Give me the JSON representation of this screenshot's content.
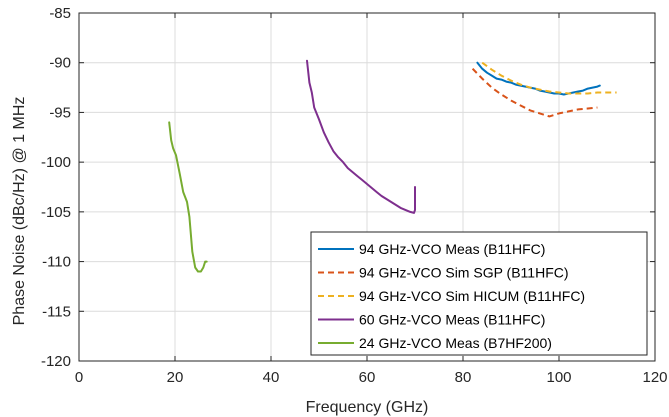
{
  "chart_data": {
    "type": "line",
    "title": "",
    "xlabel": "Frequency (GHz)",
    "ylabel": "Phase Noise (dBc/Hz) @ 1 MHz",
    "xlim": [
      0,
      120
    ],
    "ylim": [
      -120,
      -85
    ],
    "xticks": [
      0,
      20,
      40,
      60,
      80,
      100,
      120
    ],
    "yticks": [
      -120,
      -115,
      -110,
      -105,
      -100,
      -95,
      -90,
      -85
    ],
    "grid": true,
    "legend_position": "bottom-right",
    "series": [
      {
        "name": "94 GHz-VCO Meas (B11HFC)",
        "color": "#0072BD",
        "dash": "solid",
        "x": [
          83.0,
          84.0,
          85.0,
          86.0,
          87.0,
          88.0,
          89.0,
          90.0,
          91.0,
          92.0,
          93.0,
          94.0,
          95.0,
          96.0,
          97.0,
          98.0,
          99.0,
          100.0,
          101.0,
          102.0,
          103.0,
          104.0,
          105.0,
          106.0,
          107.0,
          108.0,
          108.5
        ],
        "y": [
          -90.0,
          -90.6,
          -91.0,
          -91.3,
          -91.6,
          -91.7,
          -91.9,
          -92.0,
          -92.2,
          -92.3,
          -92.4,
          -92.5,
          -92.6,
          -92.8,
          -92.9,
          -93.0,
          -93.1,
          -93.1,
          -93.2,
          -93.1,
          -93.0,
          -92.9,
          -92.8,
          -92.6,
          -92.5,
          -92.4,
          -92.3
        ]
      },
      {
        "name": "94 GHz-VCO Sim SGP (B11HFC)",
        "color": "#D95319",
        "dash": "dashed",
        "x": [
          82.0,
          84.0,
          86.0,
          88.0,
          90.0,
          92.0,
          94.0,
          96.0,
          98.0,
          100.0,
          102.0,
          104.0,
          106.0,
          108.0
        ],
        "y": [
          -90.6,
          -91.6,
          -92.5,
          -93.2,
          -93.8,
          -94.3,
          -94.8,
          -95.1,
          -95.4,
          -95.1,
          -94.9,
          -94.7,
          -94.6,
          -94.5
        ]
      },
      {
        "name": "94 GHz-VCO Sim HICUM (B11HFC)",
        "color": "#EDB120",
        "dash": "dashed",
        "x": [
          84.0,
          86.0,
          88.0,
          90.0,
          92.0,
          94.0,
          96.0,
          98.0,
          100.0,
          102.0,
          104.0,
          106.0,
          108.0,
          110.0,
          112.0
        ],
        "y": [
          -90.0,
          -90.7,
          -91.3,
          -91.8,
          -92.2,
          -92.5,
          -92.7,
          -92.9,
          -93.0,
          -93.1,
          -93.1,
          -93.1,
          -93.0,
          -93.0,
          -93.0
        ]
      },
      {
        "name": "60 GHz-VCO Meas (B11HFC)",
        "color": "#7E2F8E",
        "dash": "solid",
        "x": [
          47.5,
          48.0,
          48.5,
          49.0,
          50.0,
          51.0,
          52.0,
          53.0,
          54.0,
          55.0,
          56.0,
          57.0,
          58.0,
          59.0,
          60.0,
          61.0,
          62.0,
          63.0,
          64.0,
          65.0,
          66.0,
          67.0,
          68.0,
          69.0,
          69.8,
          70.0,
          70.0
        ],
        "y": [
          -89.8,
          -92.0,
          -93.0,
          -94.5,
          -95.7,
          -97.0,
          -98.0,
          -98.9,
          -99.5,
          -100.0,
          -100.6,
          -101.0,
          -101.4,
          -101.8,
          -102.2,
          -102.6,
          -103.0,
          -103.4,
          -103.7,
          -104.0,
          -104.3,
          -104.6,
          -104.8,
          -105.0,
          -105.1,
          -104.8,
          -102.5
        ]
      },
      {
        "name": "24 GHz-VCO Meas (B7HF200)",
        "color": "#77AC30",
        "dash": "solid",
        "x": [
          18.8,
          19.2,
          19.6,
          20.2,
          21.0,
          21.7,
          22.5,
          23.0,
          23.6,
          24.2,
          24.8,
          25.4,
          25.9,
          26.3,
          26.6
        ],
        "y": [
          -96.0,
          -97.8,
          -98.6,
          -99.3,
          -101.2,
          -103.0,
          -104.0,
          -105.5,
          -109.0,
          -110.6,
          -111.0,
          -111.0,
          -110.6,
          -110.0,
          -110.0
        ]
      }
    ]
  }
}
